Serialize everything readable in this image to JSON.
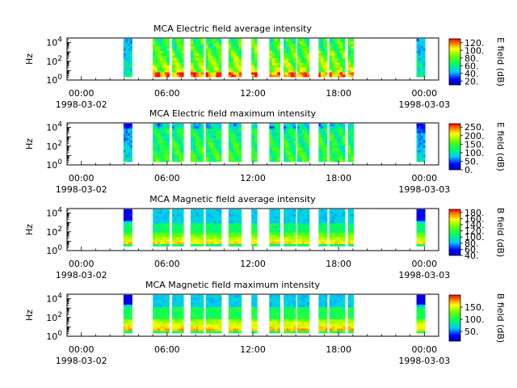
{
  "chart_data": [
    {
      "type": "heatmap",
      "title": "MCA  Electric field average intensity",
      "ylabel": "Hz",
      "y_scale": "log",
      "ylim": [
        1,
        30000
      ],
      "y_ticks": [
        {
          "exp": "0"
        },
        {
          "exp": "2"
        },
        {
          "exp": "4"
        }
      ],
      "x_ticks": [
        "00:00",
        "06:00",
        "12:00",
        "18:00",
        "00:00"
      ],
      "x_dates": [
        "1998-03-02",
        "1998-03-03"
      ],
      "xlim_hours": [
        -1,
        25
      ],
      "colorbar": {
        "label": "E field (dB)",
        "range": [
          10,
          130
        ],
        "tick_values": [
          20,
          40,
          60,
          80,
          100,
          120
        ],
        "tick_labels": [
          "20.",
          "40.",
          "60.",
          "80.",
          "100.",
          "120."
        ]
      },
      "style": "avg_e"
    },
    {
      "type": "heatmap",
      "title": "MCA  Electric field maximum intensity",
      "ylabel": "Hz",
      "y_scale": "log",
      "ylim": [
        1,
        30000
      ],
      "y_ticks": [
        {
          "exp": "0"
        },
        {
          "exp": "2"
        },
        {
          "exp": "4"
        }
      ],
      "x_ticks": [
        "00:00",
        "06:00",
        "12:00",
        "18:00",
        "00:00"
      ],
      "x_dates": [
        "1998-03-02",
        "1998-03-03"
      ],
      "xlim_hours": [
        -1,
        25
      ],
      "colorbar": {
        "label": "E field (dB)",
        "range": [
          0,
          270
        ],
        "tick_values": [
          0,
          50,
          100,
          150,
          200,
          250
        ],
        "tick_labels": [
          "0.",
          "50.",
          "100.",
          "150.",
          "200.",
          "250."
        ]
      },
      "style": "max_e"
    },
    {
      "type": "heatmap",
      "title": "MCA  Magnetic field average intensity",
      "ylabel": "Hz",
      "y_scale": "log",
      "ylim": [
        1,
        30000
      ],
      "y_ticks": [
        {
          "exp": "0"
        },
        {
          "exp": "2"
        },
        {
          "exp": "4"
        }
      ],
      "x_ticks": [
        "00:00",
        "06:00",
        "12:00",
        "18:00",
        "00:00"
      ],
      "x_dates": [
        "1998-03-02",
        "1998-03-03"
      ],
      "xlim_hours": [
        -1,
        25
      ],
      "colorbar": {
        "label": "B field (dB)",
        "range": [
          40,
          190
        ],
        "tick_values": [
          40,
          60,
          80,
          100,
          120,
          140,
          160,
          180
        ],
        "tick_labels": [
          "40.",
          "60.",
          "80.",
          "100.",
          "120.",
          "140.",
          "160.",
          "180."
        ]
      },
      "style": "avg_b"
    },
    {
      "type": "heatmap",
      "title": "MCA  Magnetic field maximum intensity",
      "ylabel": "Hz",
      "y_scale": "log",
      "ylim": [
        1,
        30000
      ],
      "y_ticks": [
        {
          "exp": "0"
        },
        {
          "exp": "2"
        },
        {
          "exp": "4"
        }
      ],
      "x_ticks": [
        "00:00",
        "06:00",
        "12:00",
        "18:00",
        "00:00"
      ],
      "x_dates": [
        "1998-03-02",
        "1998-03-03"
      ],
      "xlim_hours": [
        -1,
        25
      ],
      "colorbar": {
        "label": "B field (dB)",
        "range": [
          10,
          200
        ],
        "tick_values": [
          50,
          100,
          150
        ],
        "tick_labels": [
          "50.",
          "100.",
          "150."
        ]
      },
      "style": "max_b"
    }
  ],
  "data_intervals_hours": [
    [
      2.95,
      3.55
    ],
    [
      5.0,
      6.15
    ],
    [
      6.35,
      7.15
    ],
    [
      7.65,
      8.55
    ],
    [
      8.7,
      9.8
    ],
    [
      10.3,
      11.2
    ],
    [
      11.9,
      12.3
    ],
    [
      13.15,
      13.9
    ],
    [
      14.15,
      15.0
    ],
    [
      15.1,
      15.95
    ],
    [
      16.6,
      17.2
    ],
    [
      17.35,
      18.45
    ],
    [
      18.65,
      19.05
    ],
    [
      23.45,
      24.05
    ]
  ],
  "colors": {
    "axis": "#000000",
    "background": "#ffffff"
  }
}
